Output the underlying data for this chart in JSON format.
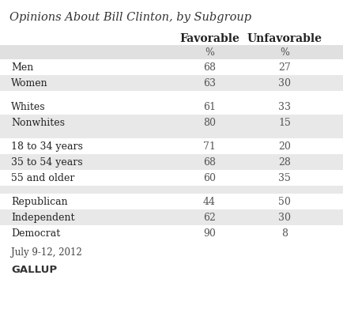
{
  "title": "Opinions About Bill Clinton, by Subgroup",
  "col_headers": [
    "Favorable",
    "Unfavorable"
  ],
  "col_subheaders": [
    "%",
    "%"
  ],
  "rows": [
    {
      "label": "Men",
      "fav": "68",
      "unfav": "27",
      "shaded": false,
      "spacer": false
    },
    {
      "label": "Women",
      "fav": "63",
      "unfav": "30",
      "shaded": true,
      "spacer": false
    },
    {
      "label": "",
      "fav": "",
      "unfav": "",
      "shaded": false,
      "spacer": true
    },
    {
      "label": "Whites",
      "fav": "61",
      "unfav": "33",
      "shaded": false,
      "spacer": false
    },
    {
      "label": "Nonwhites",
      "fav": "80",
      "unfav": "15",
      "shaded": true,
      "spacer": false
    },
    {
      "label": "",
      "fav": "",
      "unfav": "",
      "shaded": true,
      "spacer": true
    },
    {
      "label": "18 to 34 years",
      "fav": "71",
      "unfav": "20",
      "shaded": false,
      "spacer": false
    },
    {
      "label": "35 to 54 years",
      "fav": "68",
      "unfav": "28",
      "shaded": true,
      "spacer": false
    },
    {
      "label": "55 and older",
      "fav": "60",
      "unfav": "35",
      "shaded": false,
      "spacer": false
    },
    {
      "label": "",
      "fav": "",
      "unfav": "",
      "shaded": true,
      "spacer": true
    },
    {
      "label": "Republican",
      "fav": "44",
      "unfav": "50",
      "shaded": false,
      "spacer": false
    },
    {
      "label": "Independent",
      "fav": "62",
      "unfav": "30",
      "shaded": true,
      "spacer": false
    },
    {
      "label": "Democrat",
      "fav": "90",
      "unfav": "8",
      "shaded": false,
      "spacer": false
    }
  ],
  "footer_date": "July 9-12, 2012",
  "footer_brand": "GALLUP",
  "bg_color": "#ffffff",
  "shaded_color": "#e8e8e8",
  "header_shaded_color": "#e0e0e0",
  "title_color": "#333333",
  "header_color": "#222222",
  "data_color": "#555555",
  "label_color": "#222222",
  "footer_color": "#444444",
  "brand_color": "#333333"
}
